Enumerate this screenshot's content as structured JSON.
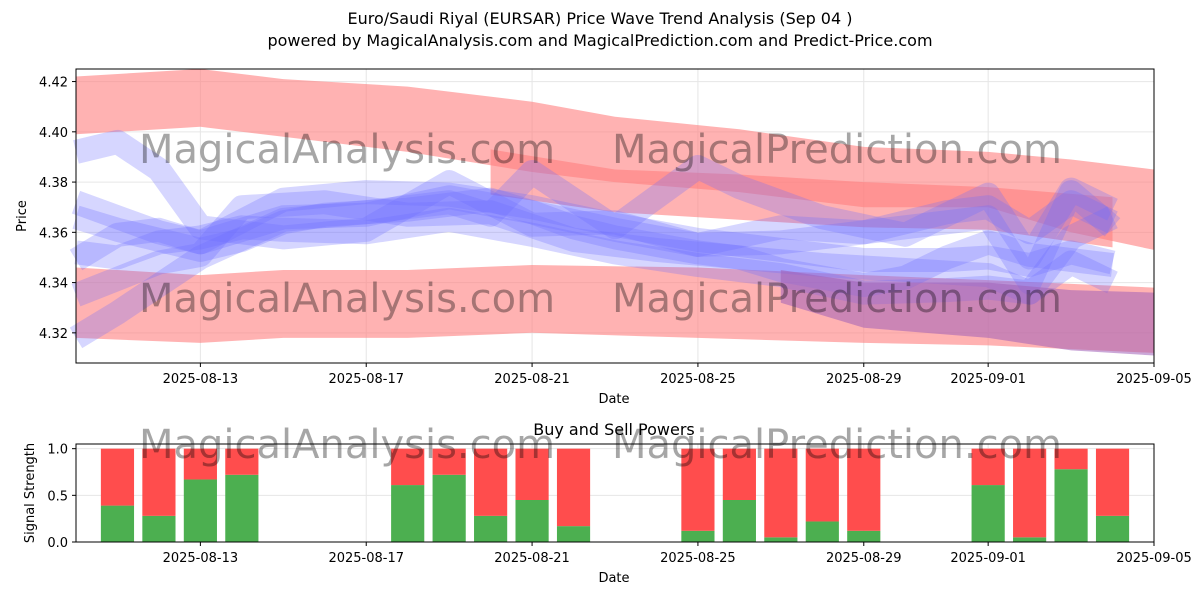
{
  "title_line1": "Euro/Saudi Riyal (EURSAR) Price Wave Trend Analysis (Sep 04 )",
  "title_line2": "powered by MagicalAnalysis.com and MagicalPrediction.com and Predict-Price.com",
  "watermarks": [
    "MagicalAnalysis.com",
    "MagicalPrediction.com"
  ],
  "colors": {
    "buy": "#4caf50",
    "sell": "#ff4d4d",
    "red_band": "#ff7f7f",
    "blue_band": "#6a6aff",
    "grid": "#e6e6e6"
  },
  "chart_data": [
    {
      "type": "area",
      "name": "price-wave",
      "xlabel": "Date",
      "ylabel": "Price",
      "xlim": [
        "2025-08-10",
        "2025-09-05"
      ],
      "ylim": [
        4.308,
        4.425
      ],
      "x_ticks": [
        "2025-08-13",
        "2025-08-17",
        "2025-08-21",
        "2025-08-25",
        "2025-08-29",
        "2025-09-01",
        "2025-09-05"
      ],
      "y_ticks": [
        4.32,
        4.34,
        4.36,
        4.38,
        4.4,
        4.42
      ],
      "grid": true,
      "red_bands": [
        {
          "x": [
            "2025-08-10",
            "2025-08-13",
            "2025-08-15",
            "2025-08-18",
            "2025-08-21",
            "2025-08-23",
            "2025-08-26",
            "2025-08-29",
            "2025-09-01",
            "2025-09-03",
            "2025-09-05"
          ],
          "upper": [
            4.422,
            4.425,
            4.421,
            4.418,
            4.412,
            4.406,
            4.401,
            4.394,
            4.392,
            4.389,
            4.385
          ],
          "lower": [
            4.399,
            4.402,
            4.398,
            4.392,
            4.384,
            4.38,
            4.376,
            4.37,
            4.37,
            4.36,
            4.353
          ]
        },
        {
          "x": [
            "2025-08-10",
            "2025-08-13",
            "2025-08-15",
            "2025-08-18",
            "2025-08-21",
            "2025-08-25",
            "2025-08-29",
            "2025-09-01",
            "2025-09-05"
          ],
          "upper": [
            4.346,
            4.343,
            4.345,
            4.345,
            4.347,
            4.346,
            4.343,
            4.341,
            4.338
          ],
          "lower": [
            4.318,
            4.316,
            4.318,
            4.318,
            4.32,
            4.318,
            4.316,
            4.315,
            4.312
          ]
        },
        {
          "x": [
            "2025-08-20",
            "2025-08-23",
            "2025-08-26",
            "2025-08-29",
            "2025-09-01",
            "2025-09-04"
          ],
          "upper": [
            4.393,
            4.385,
            4.383,
            4.38,
            4.378,
            4.374
          ],
          "lower": [
            4.375,
            4.368,
            4.365,
            4.362,
            4.361,
            4.354
          ]
        }
      ],
      "blue_waves": [
        {
          "x": [
            "2025-08-10",
            "2025-08-11",
            "2025-08-12",
            "2025-08-13",
            "2025-08-14",
            "2025-08-15",
            "2025-08-16",
            "2025-08-17",
            "2025-08-18",
            "2025-08-19",
            "2025-08-20",
            "2025-08-21",
            "2025-08-22",
            "2025-08-23",
            "2025-08-24",
            "2025-08-25",
            "2025-08-26",
            "2025-08-27",
            "2025-08-28",
            "2025-08-29",
            "2025-08-30",
            "2025-08-31",
            "2025-09-01",
            "2025-09-02",
            "2025-09-03",
            "2025-09-04"
          ],
          "y": [
            4.366,
            4.361,
            4.357,
            4.353,
            4.357,
            4.364,
            4.367,
            4.368,
            4.369,
            4.371,
            4.373,
            4.368,
            4.362,
            4.358,
            4.355,
            4.352,
            4.35,
            4.345,
            4.342,
            4.339,
            4.342,
            4.35,
            4.356,
            4.351,
            4.349,
            4.347
          ]
        },
        {
          "x": [
            "2025-08-10",
            "2025-08-12",
            "2025-08-13",
            "2025-08-15",
            "2025-08-17",
            "2025-08-19",
            "2025-08-21",
            "2025-08-23",
            "2025-08-25",
            "2025-08-27",
            "2025-08-29",
            "2025-08-31",
            "2025-09-01",
            "2025-09-02",
            "2025-09-03",
            "2025-09-04"
          ],
          "y": [
            4.372,
            4.36,
            4.356,
            4.373,
            4.376,
            4.375,
            4.37,
            4.363,
            4.357,
            4.353,
            4.349,
            4.349,
            4.35,
            4.347,
            4.352,
            4.348
          ]
        },
        {
          "x": [
            "2025-08-10",
            "2025-08-11",
            "2025-08-12",
            "2025-08-13",
            "2025-08-14",
            "2025-08-15",
            "2025-08-17",
            "2025-08-19",
            "2025-08-21",
            "2025-08-23",
            "2025-08-25",
            "2025-08-27",
            "2025-08-29",
            "2025-08-31",
            "2025-09-01",
            "2025-09-02",
            "2025-09-03",
            "2025-09-04"
          ],
          "y": [
            4.352,
            4.35,
            4.356,
            4.358,
            4.362,
            4.361,
            4.36,
            4.365,
            4.359,
            4.352,
            4.347,
            4.343,
            4.336,
            4.337,
            4.338,
            4.336,
            4.358,
            4.366
          ]
        },
        {
          "x": [
            "2025-08-10",
            "2025-08-11",
            "2025-08-12",
            "2025-08-13",
            "2025-08-15",
            "2025-08-17",
            "2025-08-19",
            "2025-08-21",
            "2025-08-23",
            "2025-08-25",
            "2025-08-27",
            "2025-08-29",
            "2025-08-31",
            "2025-09-01",
            "2025-09-02",
            "2025-09-03",
            "2025-09-04"
          ],
          "y": [
            4.392,
            4.396,
            4.385,
            4.362,
            4.358,
            4.361,
            4.38,
            4.363,
            4.364,
            4.355,
            4.362,
            4.36,
            4.368,
            4.37,
            4.36,
            4.372,
            4.364
          ]
        },
        {
          "x": [
            "2025-08-10",
            "2025-08-11",
            "2025-08-13",
            "2025-08-15",
            "2025-08-17",
            "2025-08-19",
            "2025-08-20",
            "2025-08-21",
            "2025-08-23",
            "2025-08-25",
            "2025-08-26",
            "2025-08-28",
            "2025-08-30",
            "2025-09-01",
            "2025-09-02",
            "2025-09-03",
            "2025-09-04"
          ],
          "y": [
            4.318,
            4.328,
            4.35,
            4.365,
            4.368,
            4.372,
            4.367,
            4.384,
            4.362,
            4.386,
            4.378,
            4.366,
            4.359,
            4.375,
            4.35,
            4.377,
            4.369
          ]
        },
        {
          "x": [
            "2025-08-10",
            "2025-08-11",
            "2025-08-12",
            "2025-08-13",
            "2025-08-15",
            "2025-08-17",
            "2025-08-19",
            "2025-08-21",
            "2025-08-23",
            "2025-08-25",
            "2025-08-27",
            "2025-08-29",
            "2025-09-01",
            "2025-09-02",
            "2025-09-03",
            "2025-09-04"
          ],
          "y": [
            4.349,
            4.359,
            4.361,
            4.356,
            4.366,
            4.367,
            4.374,
            4.368,
            4.361,
            4.355,
            4.356,
            4.36,
            4.366,
            4.34,
            4.376,
            4.362
          ]
        },
        {
          "x": [
            "2025-08-10",
            "2025-08-12",
            "2025-08-13",
            "2025-08-14",
            "2025-08-16",
            "2025-08-18",
            "2025-08-20",
            "2025-08-22",
            "2025-08-24",
            "2025-08-26",
            "2025-08-28",
            "2025-08-30",
            "2025-09-01",
            "2025-09-02",
            "2025-09-03",
            "2025-09-04"
          ],
          "y": [
            4.335,
            4.348,
            4.351,
            4.37,
            4.372,
            4.367,
            4.368,
            4.357,
            4.353,
            4.35,
            4.347,
            4.345,
            4.343,
            4.336,
            4.348,
            4.34
          ]
        }
      ],
      "purple_band": {
        "x": [
          "2025-08-27",
          "2025-08-29",
          "2025-09-01",
          "2025-09-03",
          "2025-09-05"
        ],
        "upper": [
          4.345,
          4.34,
          4.34,
          4.337,
          4.336
        ],
        "lower": [
          4.332,
          4.322,
          4.318,
          4.313,
          4.311
        ]
      }
    },
    {
      "type": "bar",
      "name": "buy-sell-powers",
      "title": "Buy and Sell Powers",
      "xlabel": "Date",
      "ylabel": "Signal Strength",
      "ylim": [
        0,
        1.05
      ],
      "y_ticks": [
        0.0,
        0.5,
        1.0
      ],
      "x_ticks": [
        "2025-08-13",
        "2025-08-17",
        "2025-08-21",
        "2025-08-25",
        "2025-08-29",
        "2025-09-01",
        "2025-09-05"
      ],
      "categories": [
        "2025-08-11",
        "2025-08-12",
        "2025-08-13",
        "2025-08-14",
        "2025-08-18",
        "2025-08-19",
        "2025-08-20",
        "2025-08-21",
        "2025-08-22",
        "2025-08-25",
        "2025-08-26",
        "2025-08-27",
        "2025-08-28",
        "2025-08-29",
        "2025-09-01",
        "2025-09-02",
        "2025-09-03",
        "2025-09-04"
      ],
      "series": [
        {
          "name": "buy",
          "values": [
            0.39,
            0.28,
            0.67,
            0.72,
            0.61,
            0.72,
            0.28,
            0.45,
            0.17,
            0.12,
            0.45,
            0.05,
            0.22,
            0.12,
            0.61,
            0.05,
            0.78,
            0.28
          ]
        },
        {
          "name": "sell",
          "values": [
            0.61,
            0.72,
            0.33,
            0.28,
            0.39,
            0.28,
            0.72,
            0.55,
            0.83,
            0.88,
            0.55,
            0.95,
            0.78,
            0.88,
            0.39,
            0.95,
            0.22,
            0.72
          ]
        }
      ]
    }
  ]
}
